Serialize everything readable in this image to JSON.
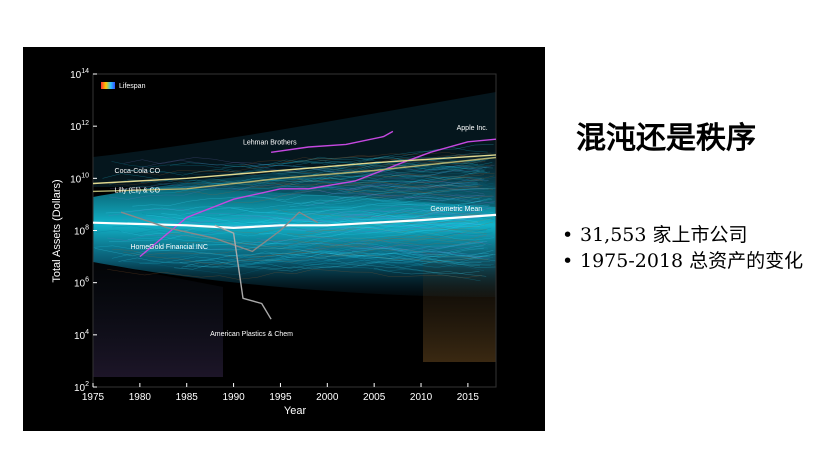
{
  "slide": {
    "title": "混沌还是秩序",
    "bullets": [
      {
        "dot": "•",
        "text": "31,553 家上市公司"
      },
      {
        "dot": "•",
        "text": "1975-2018 总资产的变化"
      }
    ]
  },
  "chart_data": {
    "type": "line",
    "xlabel": "Year",
    "ylabel": "Total Assets (Dollars)",
    "xlim": [
      1975,
      2018
    ],
    "ylim_log10": [
      2,
      14
    ],
    "y_scale": "log",
    "x_ticks": [
      "1975",
      "1980",
      "1985",
      "1990",
      "1995",
      "2000",
      "2005",
      "2010",
      "2015"
    ],
    "y_ticks": [
      {
        "base": "10",
        "exp": "2"
      },
      {
        "base": "10",
        "exp": "4"
      },
      {
        "base": "10",
        "exp": "6"
      },
      {
        "base": "10",
        "exp": "8"
      },
      {
        "base": "10",
        "exp": "10"
      },
      {
        "base": "10",
        "exp": "12"
      },
      {
        "base": "10",
        "exp": "14"
      }
    ],
    "legend": {
      "label": "Lifespan",
      "placement": "top-left"
    },
    "grid": false,
    "series": [
      {
        "name": "Apple Inc.",
        "color": "#c548e0",
        "x": [
          1980,
          1985,
          1990,
          1995,
          1998,
          2003,
          2008,
          2011,
          2015,
          2018
        ],
        "y": [
          7.0,
          8.5,
          9.2,
          9.6,
          9.6,
          9.9,
          10.6,
          11.0,
          11.4,
          11.5
        ]
      },
      {
        "name": "Lehman Brothers",
        "color": "#c548e0",
        "x": [
          1994,
          1998,
          2002,
          2006,
          2007
        ],
        "y": [
          11.0,
          11.2,
          11.3,
          11.6,
          11.8
        ]
      },
      {
        "name": "Coca-Cola CO",
        "color": "#e0d890",
        "x": [
          1975,
          1985,
          1995,
          2005,
          2018
        ],
        "y": [
          9.8,
          10.0,
          10.3,
          10.6,
          10.9
        ]
      },
      {
        "name": "Lilly (Eli) & CO",
        "color": "#b0b070",
        "x": [
          1975,
          1985,
          1995,
          2005,
          2018
        ],
        "y": [
          9.5,
          9.6,
          10.0,
          10.3,
          10.8
        ]
      },
      {
        "name": "Geometric Mean",
        "color": "#ffffff",
        "x": [
          1975,
          1985,
          1990,
          1995,
          2000,
          2005,
          2010,
          2018
        ],
        "y": [
          8.3,
          8.2,
          8.1,
          8.2,
          8.2,
          8.3,
          8.4,
          8.6
        ]
      },
      {
        "name": "HomeGold Financial INC",
        "color": "#888888",
        "x": [
          1978,
          1983,
          1988,
          1992,
          1995,
          1997,
          1999
        ],
        "y": [
          8.7,
          8.1,
          7.7,
          7.2,
          8.0,
          8.7,
          8.3
        ]
      },
      {
        "name": "American Plastics & Chem",
        "color": "#aaaaaa",
        "x": [
          1988,
          1990,
          1991,
          1993,
          1994
        ],
        "y": [
          8.2,
          7.9,
          5.4,
          5.2,
          4.6
        ]
      }
    ],
    "annotations": [
      {
        "text": "Lehman Brothers",
        "x": 1991,
        "y": 11.3
      },
      {
        "text": "Apple Inc.",
        "x": 2013.8,
        "y": 11.85
      },
      {
        "text": "Coca-Cola CO",
        "x": 1977.3,
        "y": 10.2
      },
      {
        "text": "Lilly (Eli) & CO",
        "x": 1977.3,
        "y": 9.45
      },
      {
        "text": "Geometric Mean",
        "x": 2011,
        "y": 8.75
      },
      {
        "text": "HomeGold Financial INC",
        "x": 1979,
        "y": 7.3
      },
      {
        "text": "American Plastics & Chem",
        "x": 1987.5,
        "y": 3.95
      }
    ]
  }
}
